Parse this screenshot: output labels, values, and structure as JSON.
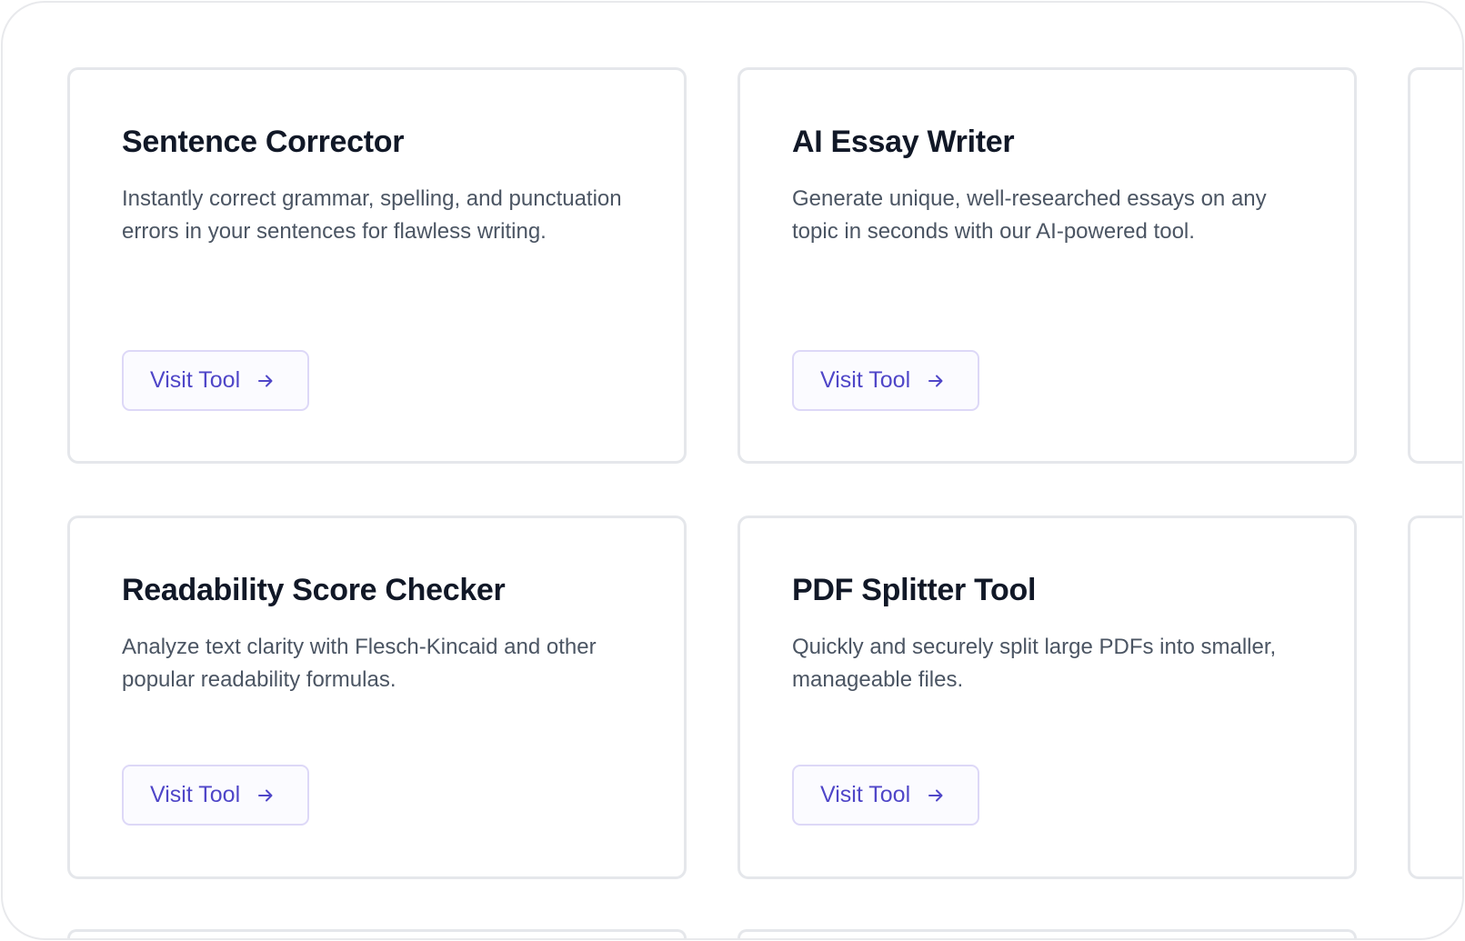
{
  "cards": [
    {
      "title": "Sentence Corrector",
      "description": "Instantly correct grammar, spelling, and punctuation errors in your sentences for flawless writing.",
      "button": "Visit Tool"
    },
    {
      "title": "AI Essay Writer",
      "description": "Generate unique, well-researched essays on any topic in seconds with our AI-powered tool.",
      "button": "Visit Tool"
    },
    {
      "title": "Readability Score Checker",
      "description": "Analyze text clarity with Flesch-Kincaid and other popular readability formulas.",
      "button": "Visit Tool"
    },
    {
      "title": "PDF Splitter Tool",
      "description": "Quickly and securely split large PDFs into smaller, manageable files.",
      "button": "Visit Tool"
    }
  ],
  "icons": {
    "button_icon": "arrow-right-icon"
  },
  "colors": {
    "accent": "#4f46c8",
    "title": "#111827",
    "text": "#4b5563",
    "border": "#e5e7eb"
  }
}
